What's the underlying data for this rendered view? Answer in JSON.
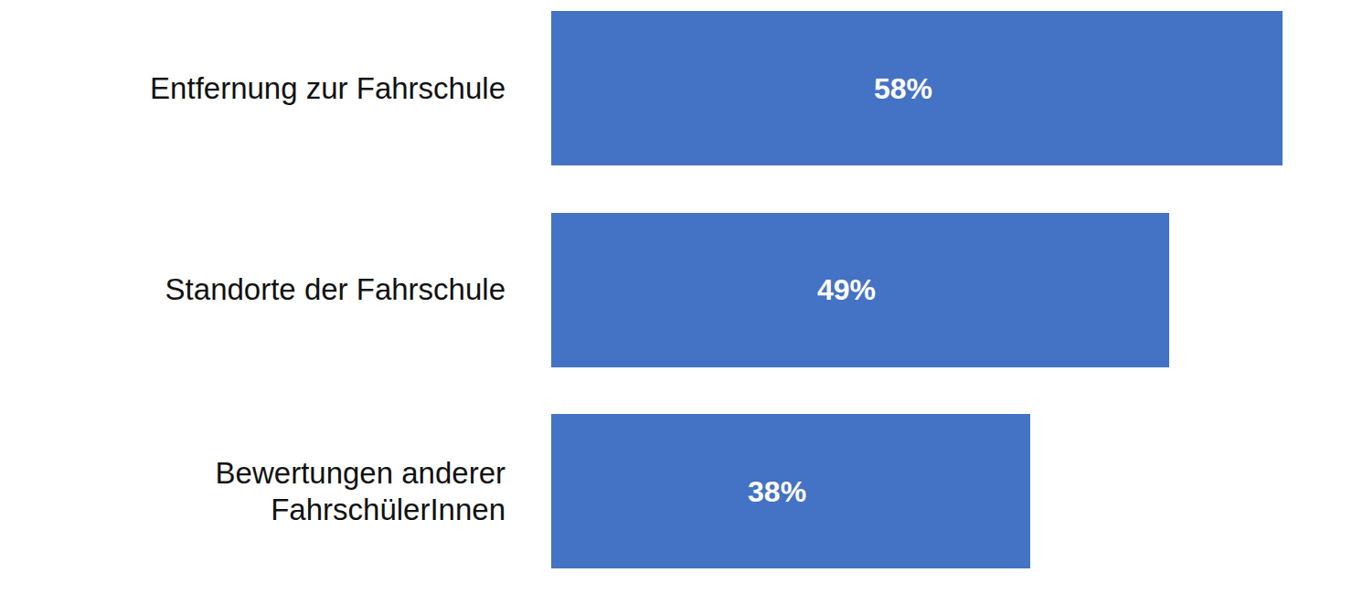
{
  "chart_data": {
    "type": "bar",
    "orientation": "horizontal",
    "categories": [
      "Entfernung zur Fahrschule",
      "Standorte der Fahrschule",
      "Bewertungen anderer FahrschülerInnen"
    ],
    "values": [
      58,
      49,
      38
    ],
    "value_labels": [
      "58%",
      "49%",
      "38%"
    ],
    "color": "#4472c4",
    "xlim": [
      0,
      58
    ],
    "data_labels": true,
    "tick_labels": "y",
    "grid": false
  }
}
